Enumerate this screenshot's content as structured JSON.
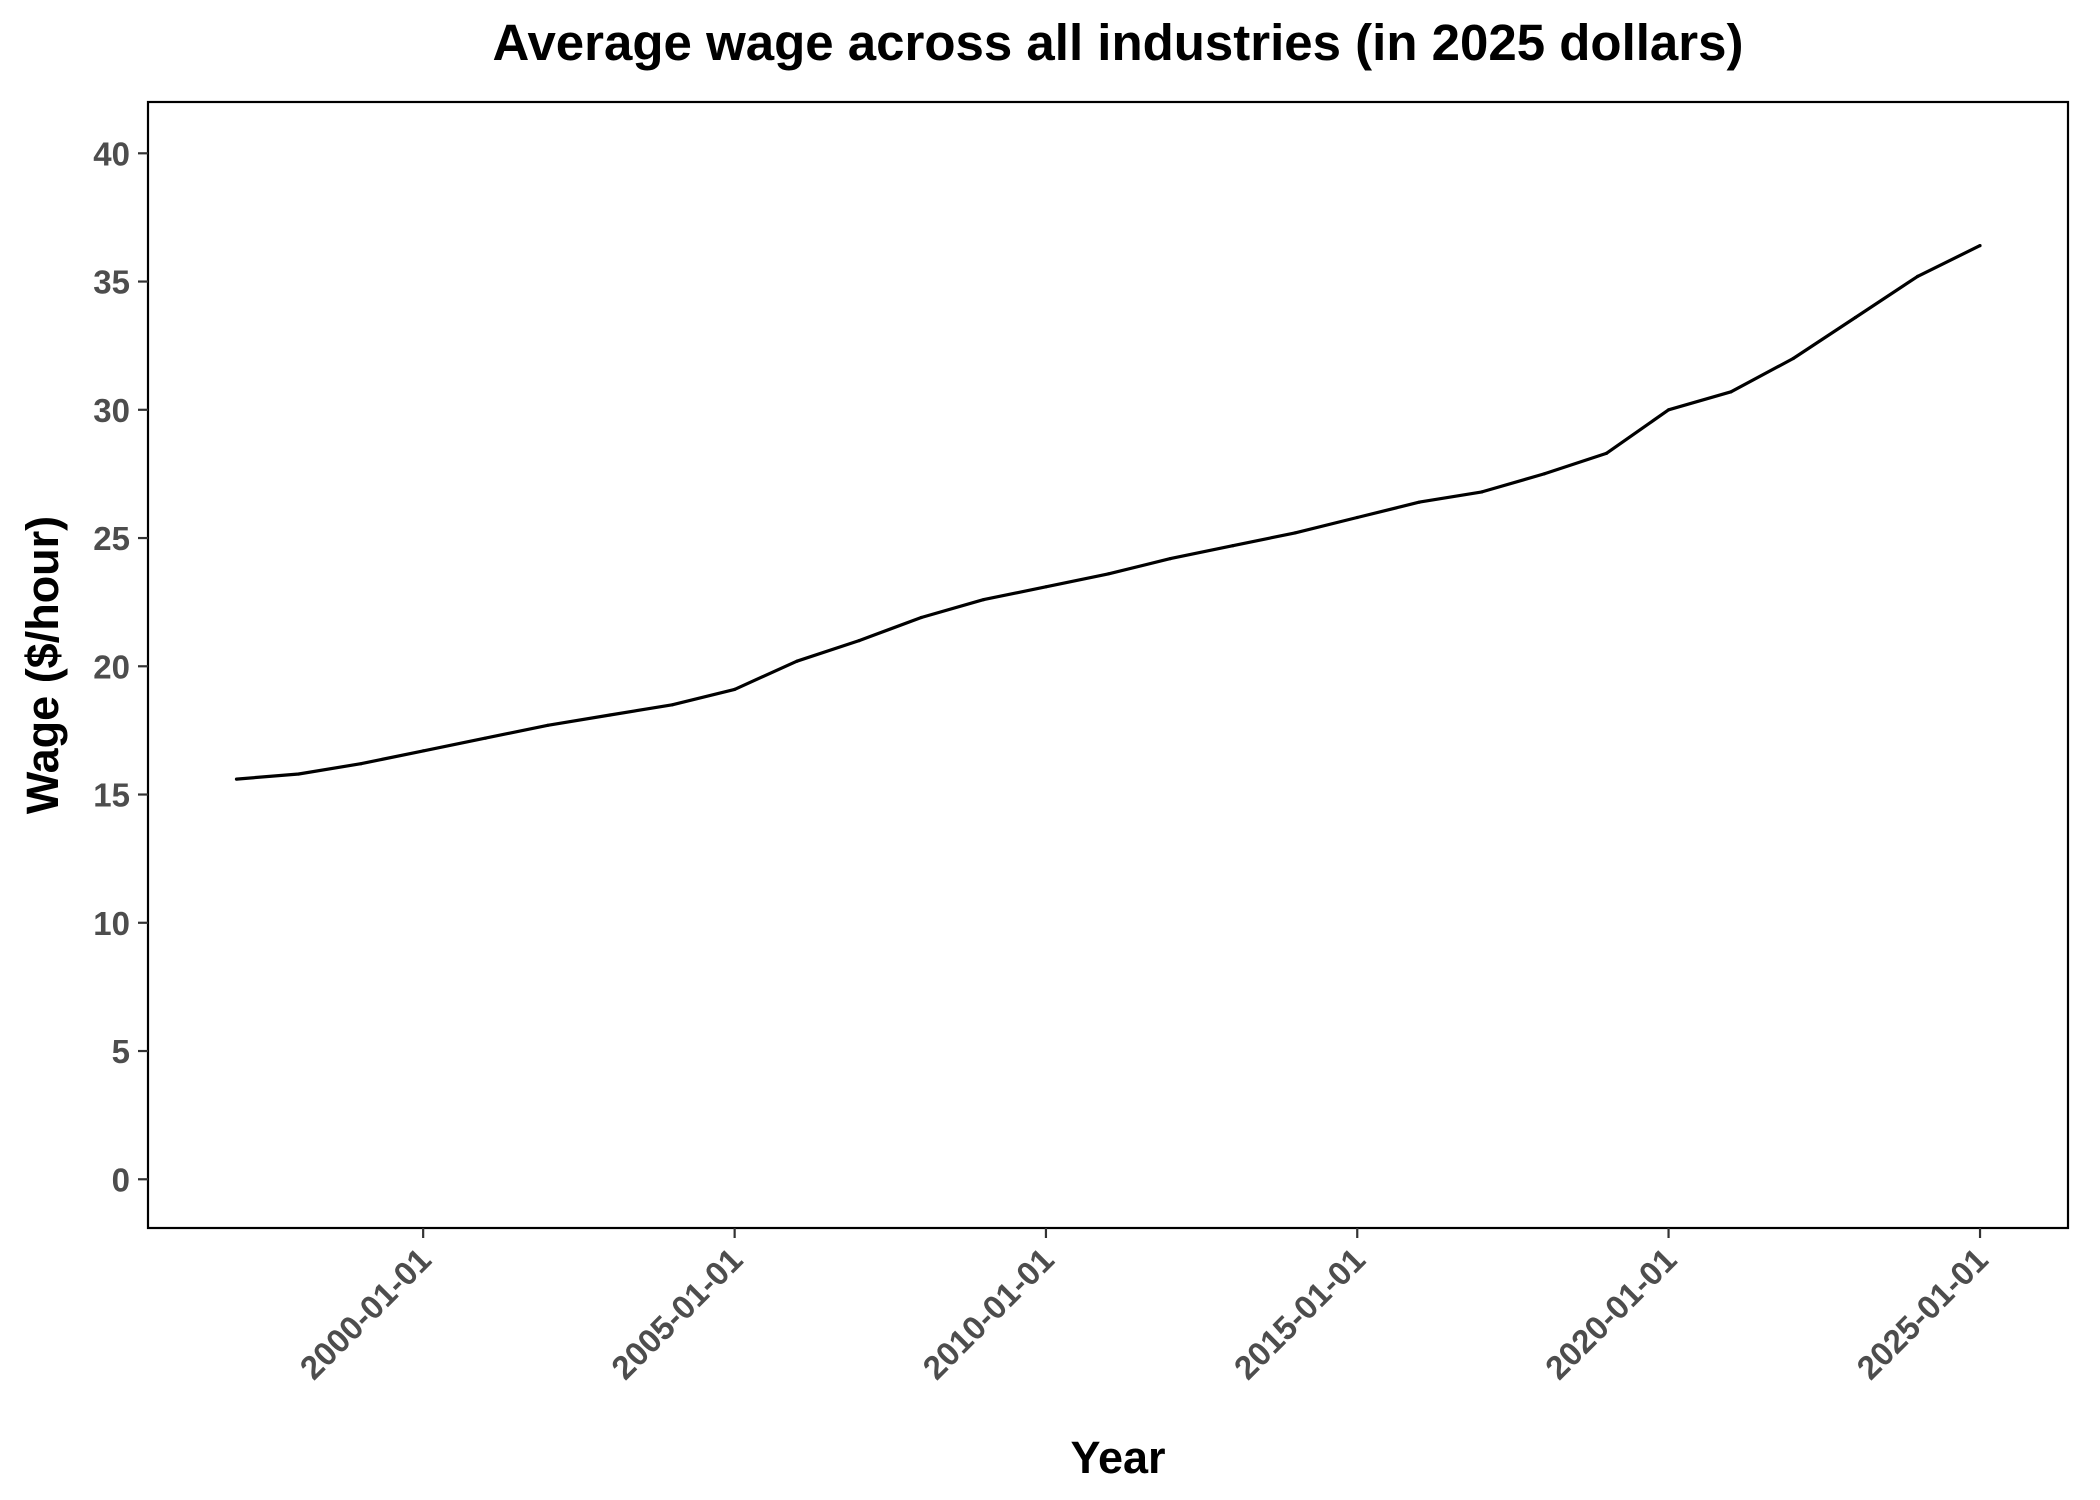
{
  "chart_data": {
    "type": "line",
    "title": "Average wage across all industries (in 2025 dollars)",
    "xlabel": "Year",
    "ylabel": "Wage ($/hour)",
    "x_axis_type": "date",
    "xlim": [
      "1995-08-01",
      "2026-06-01"
    ],
    "ylim": [
      -1.9,
      42
    ],
    "x_ticks": [
      "2000-01-01",
      "2005-01-01",
      "2010-01-01",
      "2015-01-01",
      "2020-01-01",
      "2025-01-01"
    ],
    "y_ticks": [
      0,
      5,
      10,
      15,
      20,
      25,
      30,
      35,
      40
    ],
    "grid": false,
    "legend": "none",
    "line_color": "#000000",
    "series": [
      {
        "x": [
          "1997-01-01",
          "1998-01-01",
          "1999-01-01",
          "2000-01-01",
          "2001-01-01",
          "2002-01-01",
          "2003-01-01",
          "2004-01-01",
          "2005-01-01",
          "2006-01-01",
          "2007-01-01",
          "2008-01-01",
          "2009-01-01",
          "2010-01-01",
          "2011-01-01",
          "2012-01-01",
          "2013-01-01",
          "2014-01-01",
          "2015-01-01",
          "2016-01-01",
          "2017-01-01",
          "2018-01-01",
          "2019-01-01",
          "2020-01-01",
          "2021-01-01",
          "2022-01-01",
          "2023-01-01",
          "2024-01-01",
          "2025-01-01"
        ],
        "values": [
          15.6,
          15.8,
          16.2,
          16.7,
          17.2,
          17.7,
          18.1,
          18.5,
          19.1,
          20.2,
          21.0,
          21.9,
          22.6,
          23.1,
          23.6,
          24.2,
          24.7,
          25.2,
          25.8,
          26.4,
          26.8,
          27.5,
          28.3,
          30.0,
          30.7,
          32.0,
          33.6,
          35.2,
          36.4
        ]
      }
    ]
  }
}
